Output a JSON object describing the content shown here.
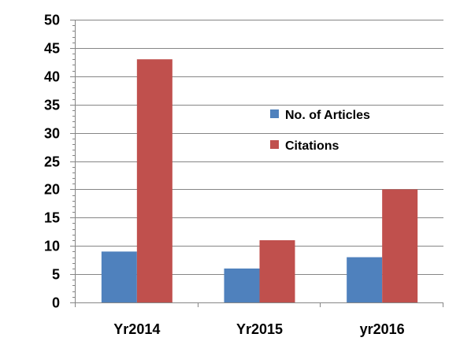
{
  "chart_data": {
    "type": "bar",
    "categories": [
      "Yr2014",
      "Yr2015",
      "yr2016"
    ],
    "series": [
      {
        "name": "No. of Articles",
        "values": [
          9,
          6,
          8
        ],
        "color": "#4f81bd"
      },
      {
        "name": "Citations",
        "values": [
          43,
          11,
          20
        ],
        "color": "#c0504d"
      }
    ],
    "ylim": [
      0,
      50
    ],
    "yticks": [
      0,
      5,
      10,
      15,
      20,
      25,
      30,
      35,
      40,
      45,
      50
    ],
    "title": "",
    "xlabel": "",
    "ylabel": "",
    "grid": true,
    "legend": "right",
    "gridline_color": "#868686",
    "axis_color": "#868686"
  }
}
